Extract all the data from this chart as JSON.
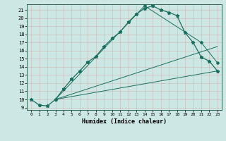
{
  "xlabel": "Humidex (Indice chaleur)",
  "background_color": "#cde8e4",
  "grid_color": "#b0d0cc",
  "line_color": "#1a6e5e",
  "xlim": [
    -0.5,
    23.5
  ],
  "ylim": [
    8.7,
    21.7
  ],
  "xticks": [
    0,
    1,
    2,
    3,
    4,
    5,
    6,
    7,
    8,
    9,
    10,
    11,
    12,
    13,
    14,
    15,
    16,
    17,
    18,
    19,
    20,
    21,
    22,
    23
  ],
  "yticks": [
    9,
    10,
    11,
    12,
    13,
    14,
    15,
    16,
    17,
    18,
    19,
    20,
    21
  ],
  "line1_x": [
    0,
    1,
    2,
    3,
    4,
    5,
    6,
    7,
    8,
    9,
    10,
    11,
    12,
    13,
    14,
    15,
    16,
    17,
    18,
    19,
    20,
    21,
    22,
    23
  ],
  "line1_y": [
    10.0,
    9.3,
    9.2,
    10.0,
    11.3,
    12.5,
    13.5,
    14.6,
    15.3,
    16.5,
    17.5,
    18.3,
    19.5,
    20.5,
    21.2,
    21.5,
    21.0,
    20.7,
    20.3,
    18.2,
    17.0,
    15.2,
    14.7,
    13.5
  ],
  "line2_x": [
    3,
    14,
    21,
    23
  ],
  "line2_y": [
    10.0,
    21.5,
    17.0,
    14.5
  ],
  "line3_x": [
    3,
    23
  ],
  "line3_y": [
    10.0,
    13.5
  ],
  "line4_x": [
    3,
    23
  ],
  "line4_y": [
    10.0,
    16.5
  ]
}
